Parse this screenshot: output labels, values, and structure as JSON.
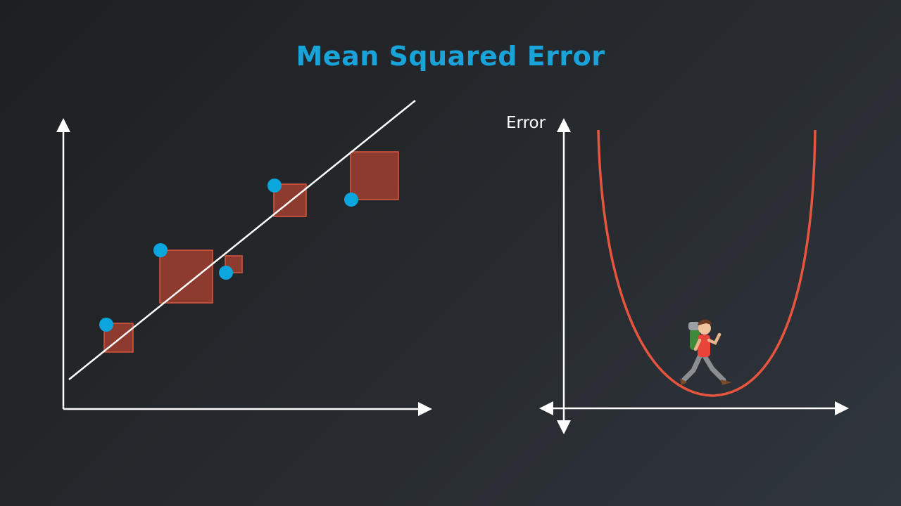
{
  "title": "Mean Squared Error",
  "colors": {
    "title": "#1aa3d9",
    "axis": "#ffffff",
    "point": "#0aa6dd",
    "square_fill": "#a0402f",
    "square_stroke": "#d8583f",
    "error_curve": "#e8553f",
    "fit_line": "#ffffff"
  },
  "left_plot": {
    "points": [
      {
        "id": 1,
        "residual": "above-line"
      },
      {
        "id": 2,
        "residual": "above-line"
      },
      {
        "id": 3,
        "residual": "below-line"
      },
      {
        "id": 4,
        "residual": "above-line"
      },
      {
        "id": 5,
        "residual": "below-line"
      }
    ],
    "fit_line_icon": "regression-line"
  },
  "right_plot": {
    "y_label": "Error",
    "curve_icon": "u-shaped-error-curve",
    "character_icon": "hiker-character"
  }
}
